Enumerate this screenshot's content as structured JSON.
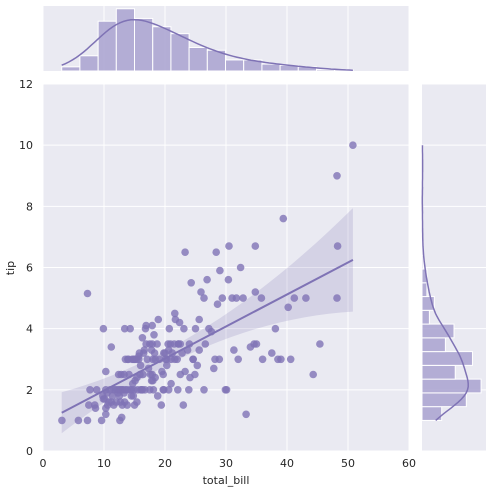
{
  "chart_data": {
    "type": "scatter",
    "xlabel": "total_bill",
    "ylabel": "tip",
    "xlim": [
      0,
      60
    ],
    "ylim": [
      0,
      12
    ],
    "x_ticks": [
      "0",
      "10",
      "20",
      "30",
      "40",
      "50",
      "60"
    ],
    "y_ticks": [
      "0",
      "2",
      "4",
      "6",
      "8",
      "10",
      "12"
    ],
    "grid": true,
    "colors": {
      "marker": "#7f73b5",
      "fill": "#a9a2d0",
      "background": "#eaeaf2",
      "grid": "#ffffff"
    },
    "regression": {
      "x_start": 3.07,
      "y_start": 1.25,
      "x_end": 50.81,
      "y_end": 6.25
    },
    "marginal_x_hist": {
      "bin_edges": [
        3.07,
        6.05,
        9.04,
        12.02,
        15.0,
        17.99,
        20.97,
        23.95,
        26.94,
        29.92,
        32.9,
        35.89,
        38.87,
        41.85,
        44.84,
        47.82,
        50.81
      ],
      "counts": [
        3,
        11,
        36,
        45,
        38,
        32,
        27,
        17,
        15,
        8,
        8,
        5,
        4,
        3,
        1,
        1
      ]
    },
    "marginal_y_hist": {
      "bin_edges": [
        1.0,
        1.45,
        1.9,
        2.35,
        2.8,
        3.25,
        3.7,
        4.15,
        4.6,
        5.05,
        5.5,
        5.95,
        6.4,
        6.85,
        7.3,
        7.75,
        8.2,
        8.65,
        9.1,
        9.55,
        10.0
      ],
      "counts": [
        16,
        36,
        48,
        27,
        41,
        19,
        26,
        6,
        10,
        4,
        4,
        1,
        1,
        0,
        1,
        0,
        0,
        1,
        0,
        1
      ]
    },
    "points": [
      [
        3.1,
        1.0
      ],
      [
        5.8,
        1.0
      ],
      [
        7.3,
        1.0
      ],
      [
        7.5,
        1.5
      ],
      [
        7.7,
        2.0
      ],
      [
        7.3,
        5.15
      ],
      [
        8.5,
        1.5
      ],
      [
        8.8,
        2.0
      ],
      [
        8.6,
        1.4
      ],
      [
        9.6,
        1.0
      ],
      [
        9.8,
        1.8
      ],
      [
        9.9,
        4.0
      ],
      [
        10.1,
        1.7
      ],
      [
        10.3,
        2.0
      ],
      [
        10.3,
        2.6
      ],
      [
        10.3,
        1.2
      ],
      [
        10.6,
        1.5
      ],
      [
        10.3,
        1.4
      ],
      [
        10.5,
        1.9
      ],
      [
        10.8,
        1.6
      ],
      [
        11.0,
        2.0
      ],
      [
        11.2,
        1.6
      ],
      [
        11.4,
        1.8
      ],
      [
        11.6,
        1.5
      ],
      [
        11.2,
        3.4
      ],
      [
        11.9,
        2.0
      ],
      [
        12.0,
        1.6
      ],
      [
        12.2,
        2.0
      ],
      [
        12.3,
        1.9
      ],
      [
        12.4,
        2.5
      ],
      [
        12.5,
        2.0
      ],
      [
        12.6,
        1.0
      ],
      [
        12.7,
        2.0
      ],
      [
        12.7,
        1.6
      ],
      [
        12.9,
        1.1
      ],
      [
        13.0,
        2.0
      ],
      [
        13.0,
        1.5
      ],
      [
        13.1,
        2.0
      ],
      [
        13.3,
        2.5
      ],
      [
        13.4,
        4.0
      ],
      [
        13.4,
        1.6
      ],
      [
        13.5,
        3.0
      ],
      [
        13.5,
        2.0
      ],
      [
        13.8,
        2.0
      ],
      [
        13.9,
        3.0
      ],
      [
        14.0,
        3.0
      ],
      [
        14.1,
        2.5
      ],
      [
        14.3,
        4.0
      ],
      [
        14.3,
        2.0
      ],
      [
        14.5,
        2.0
      ],
      [
        14.7,
        2.2
      ],
      [
        14.8,
        3.0
      ],
      [
        14.8,
        1.8
      ],
      [
        14.9,
        2.0
      ],
      [
        15.0,
        3.0
      ],
      [
        15.0,
        1.5
      ],
      [
        15.1,
        2.3
      ],
      [
        15.4,
        1.6
      ],
      [
        15.4,
        3.0
      ],
      [
        15.5,
        2.0
      ],
      [
        15.7,
        3.1
      ],
      [
        15.8,
        3.2
      ],
      [
        15.9,
        2.5
      ],
      [
        16.0,
        2.0
      ],
      [
        16.0,
        2.8
      ],
      [
        16.2,
        2.0
      ],
      [
        16.3,
        3.7
      ],
      [
        16.4,
        2.5
      ],
      [
        16.5,
        3.2
      ],
      [
        16.7,
        2.0
      ],
      [
        16.9,
        3.5
      ],
      [
        16.9,
        4.1
      ],
      [
        17.1,
        3.0
      ],
      [
        17.3,
        2.7
      ],
      [
        17.5,
        3.5
      ],
      [
        17.6,
        2.5
      ],
      [
        17.8,
        2.3
      ],
      [
        17.9,
        4.1
      ],
      [
        17.9,
        3.5
      ],
      [
        18.0,
        3.0
      ],
      [
        18.1,
        2.0
      ],
      [
        18.3,
        3.2
      ],
      [
        18.2,
        3.8
      ],
      [
        18.4,
        2.4
      ],
      [
        18.7,
        3.5
      ],
      [
        18.8,
        1.8
      ],
      [
        18.9,
        4.3
      ],
      [
        19.1,
        3.0
      ],
      [
        19.4,
        1.5
      ],
      [
        19.5,
        2.6
      ],
      [
        19.7,
        2.0
      ],
      [
        19.8,
        3.2
      ],
      [
        20.1,
        3.0
      ],
      [
        20.3,
        2.8
      ],
      [
        20.5,
        3.5
      ],
      [
        20.6,
        2.0
      ],
      [
        20.7,
        4.0
      ],
      [
        20.9,
        3.5
      ],
      [
        21.0,
        3.0
      ],
      [
        21.0,
        2.2
      ],
      [
        21.2,
        3.2
      ],
      [
        21.5,
        3.5
      ],
      [
        21.6,
        4.5
      ],
      [
        21.7,
        4.3
      ],
      [
        22.0,
        3.0
      ],
      [
        22.1,
        2.0
      ],
      [
        22.2,
        3.5
      ],
      [
        22.4,
        4.2
      ],
      [
        22.5,
        2.5
      ],
      [
        22.8,
        3.2
      ],
      [
        23.0,
        1.5
      ],
      [
        23.1,
        4.0
      ],
      [
        23.3,
        2.6
      ],
      [
        23.7,
        3.3
      ],
      [
        24.0,
        3.5
      ],
      [
        24.1,
        2.4
      ],
      [
        24.3,
        5.5
      ],
      [
        24.6,
        3.0
      ],
      [
        24.9,
        2.5
      ],
      [
        25.0,
        4.0
      ],
      [
        25.3,
        2.8
      ],
      [
        25.6,
        4.3
      ],
      [
        25.9,
        5.2
      ],
      [
        26.4,
        2.0
      ],
      [
        26.6,
        3.5
      ],
      [
        26.9,
        5.6
      ],
      [
        27.2,
        4.0
      ],
      [
        27.6,
        3.9
      ],
      [
        28.0,
        2.7
      ],
      [
        28.2,
        3.0
      ],
      [
        28.4,
        6.5
      ],
      [
        28.6,
        4.8
      ],
      [
        28.9,
        3.0
      ],
      [
        29.0,
        5.9
      ],
      [
        29.4,
        5.0
      ],
      [
        29.9,
        2.0
      ],
      [
        30.1,
        2.0
      ],
      [
        30.4,
        5.6
      ],
      [
        31.0,
        5.0
      ],
      [
        31.3,
        3.3
      ],
      [
        31.7,
        5.0
      ],
      [
        32.0,
        3.0
      ],
      [
        32.4,
        6.0
      ],
      [
        32.8,
        5.0
      ],
      [
        33.3,
        1.2
      ],
      [
        34.0,
        3.4
      ],
      [
        34.6,
        3.5
      ],
      [
        34.8,
        5.2
      ],
      [
        35.0,
        3.5
      ],
      [
        35.8,
        5.0
      ],
      [
        36.0,
        3.0
      ],
      [
        37.5,
        3.2
      ],
      [
        38.1,
        4.0
      ],
      [
        38.5,
        3.0
      ],
      [
        39.0,
        3.0
      ],
      [
        39.4,
        7.6
      ],
      [
        40.2,
        4.7
      ],
      [
        40.6,
        3.0
      ],
      [
        41.2,
        5.0
      ],
      [
        43.1,
        5.0
      ],
      [
        44.3,
        2.5
      ],
      [
        45.4,
        3.5
      ],
      [
        48.2,
        9.0
      ],
      [
        48.3,
        6.7
      ],
      [
        48.2,
        5.0
      ],
      [
        50.8,
        10.0
      ],
      [
        23.3,
        6.5
      ],
      [
        26.4,
        5.0
      ],
      [
        30.5,
        6.7
      ],
      [
        34.8,
        6.7
      ],
      [
        20.3,
        3.0
      ],
      [
        15.7,
        3.0
      ],
      [
        24.6,
        3.0
      ],
      [
        18.4,
        3.0
      ],
      [
        20.0,
        3.2
      ],
      [
        16.8,
        4.0
      ],
      [
        11.6,
        2.0
      ],
      [
        13.8,
        1.5
      ],
      [
        9.9,
        1.7
      ],
      [
        14.5,
        1.8
      ],
      [
        21.6,
        3.0
      ],
      [
        17.5,
        2.0
      ],
      [
        17.8,
        3.3
      ],
      [
        12.8,
        2.5
      ],
      [
        15.4,
        2.4
      ],
      [
        19.7,
        2.5
      ],
      [
        22.5,
        3.5
      ],
      [
        13.3,
        1.9
      ],
      [
        16.6,
        3.3
      ],
      [
        17.9,
        2.5
      ],
      [
        25.6,
        3.3
      ],
      [
        15.1,
        3.0
      ],
      [
        18.0,
        2.3
      ],
      [
        12.5,
        1.8
      ],
      [
        14.6,
        3.0
      ],
      [
        16.3,
        2.0
      ],
      [
        20.6,
        3.3
      ],
      [
        23.9,
        2.0
      ],
      [
        19.8,
        2.0
      ],
      [
        22.2,
        3.5
      ]
    ]
  }
}
